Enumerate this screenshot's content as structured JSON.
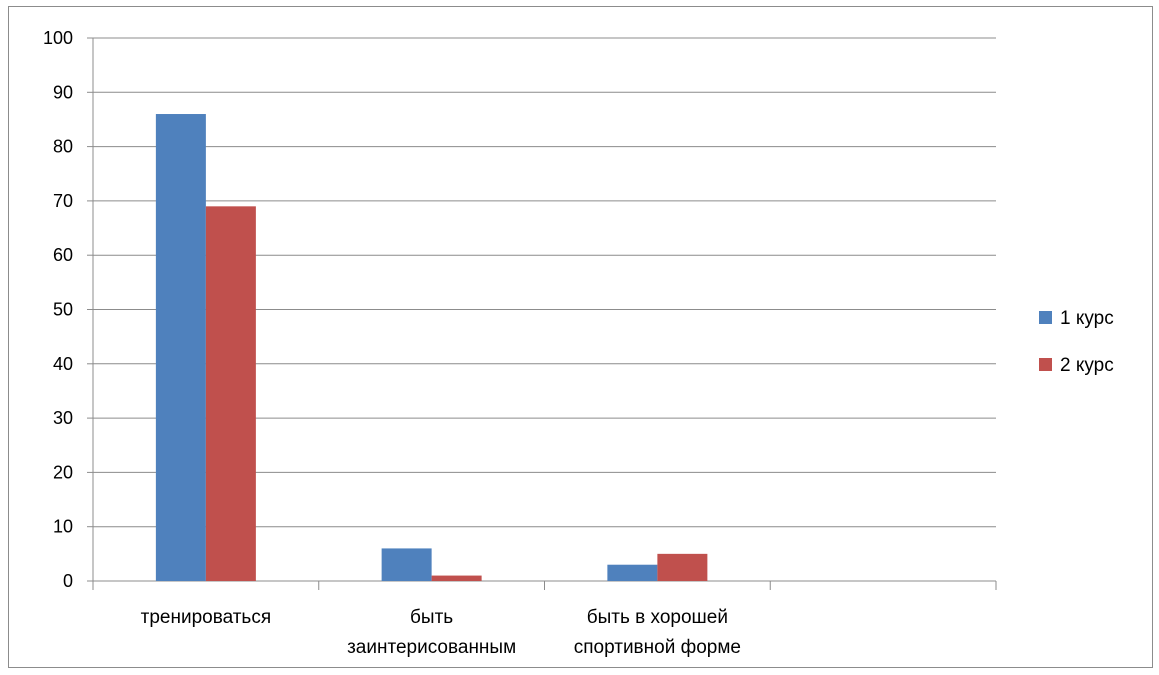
{
  "chart_data": {
    "type": "bar",
    "categories": [
      [
        "тренироваться"
      ],
      [
        "быть",
        "заинтерисованным"
      ],
      [
        "быть в хорошей",
        "спортивной форме"
      ],
      []
    ],
    "series": [
      {
        "name": "1 курс",
        "color": "#4F81BD",
        "values": [
          86,
          6,
          3,
          null
        ]
      },
      {
        "name": "2 курс",
        "color": "#C0504D",
        "values": [
          69,
          1,
          5,
          null
        ]
      }
    ],
    "ylim": [
      0,
      100
    ],
    "yticks": [
      0,
      10,
      20,
      30,
      40,
      50,
      60,
      70,
      80,
      90,
      100
    ],
    "grid": true,
    "legend": "right",
    "xlabel": "",
    "ylabel": ""
  }
}
